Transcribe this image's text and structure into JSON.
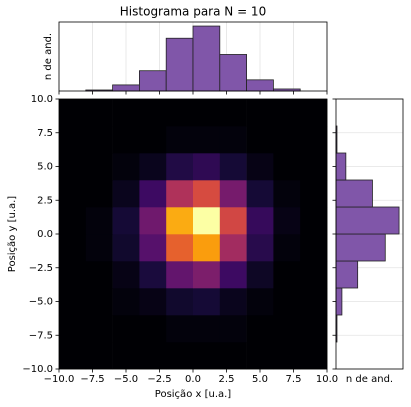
{
  "chart_data": [
    {
      "type": "heatmap",
      "xlabel": "Posição x [u.a.]",
      "ylabel": "Posição y [u.a.]",
      "xlim": [
        -10,
        10
      ],
      "ylim": [
        -10,
        10
      ],
      "xbins": [
        -10,
        -8,
        -6,
        -4,
        -2,
        0,
        2,
        4,
        6,
        8,
        10
      ],
      "ybins": [
        -10,
        -8,
        -6,
        -4,
        -2,
        0,
        2,
        4,
        6,
        8,
        10
      ],
      "values": [
        [
          0,
          0,
          0,
          0,
          0,
          0,
          0,
          0,
          0,
          0
        ],
        [
          0,
          0,
          0,
          0,
          1,
          1,
          1,
          0,
          0,
          0
        ],
        [
          0,
          0,
          1,
          2,
          5,
          6,
          3,
          1,
          0,
          0
        ],
        [
          0,
          0,
          2,
          7,
          18,
          22,
          12,
          4,
          0,
          0
        ],
        [
          0,
          1,
          5,
          16,
          41,
          50,
          28,
          9,
          1,
          0
        ],
        [
          0,
          1,
          6,
          20,
          52,
          64,
          36,
          11,
          2,
          0
        ],
        [
          0,
          0,
          3,
          12,
          30,
          37,
          21,
          6,
          1,
          0
        ],
        [
          0,
          0,
          1,
          3,
          8,
          10,
          6,
          2,
          0,
          0
        ],
        [
          0,
          0,
          0,
          0,
          1,
          1,
          1,
          0,
          0,
          0
        ],
        [
          0,
          0,
          0,
          0,
          0,
          0,
          0,
          0,
          0,
          0
        ]
      ],
      "colormap": "inferno",
      "clim": [
        0,
        64
      ],
      "xticks": [
        {
          "value": -10,
          "label": "−10.0"
        },
        {
          "value": -7.5,
          "label": "−7.5"
        },
        {
          "value": -5,
          "label": "−5.0"
        },
        {
          "value": -2.5,
          "label": "−2.5"
        },
        {
          "value": 0,
          "label": "0.0"
        },
        {
          "value": 2.5,
          "label": "2.5"
        },
        {
          "value": 5,
          "label": "5.0"
        },
        {
          "value": 7.5,
          "label": "7.5"
        },
        {
          "value": 10,
          "label": "10.0"
        }
      ],
      "yticks": [
        {
          "value": -10,
          "label": "−10.0"
        },
        {
          "value": -7.5,
          "label": "−7.5"
        },
        {
          "value": -5,
          "label": "−5.0"
        },
        {
          "value": -2.5,
          "label": "−2.5"
        },
        {
          "value": 0,
          "label": "0.0"
        },
        {
          "value": 2.5,
          "label": "2.5"
        },
        {
          "value": 5,
          "label": "5.0"
        },
        {
          "value": 7.5,
          "label": "7.5"
        },
        {
          "value": 10,
          "label": "10.0"
        }
      ]
    },
    {
      "type": "histogram",
      "orientation": "vertical",
      "title": "Histograma para N = 10",
      "ylabel": "n de and.",
      "bins": [
        -10,
        -8,
        -6,
        -4,
        -2,
        0,
        2,
        4,
        6,
        8,
        10
      ],
      "values": [
        0,
        1,
        6,
        20,
        52,
        64,
        36,
        11,
        2,
        0
      ],
      "color": "#8056a9",
      "xlim": [
        -10,
        10
      ],
      "ylim": [
        0,
        68
      ],
      "xticks": [
        -10,
        -7.5,
        -5,
        -2.5,
        0,
        2.5,
        5,
        7.5,
        10
      ],
      "grid": true
    },
    {
      "type": "histogram",
      "orientation": "horizontal",
      "xlabel": "n de and.",
      "bins": [
        -10,
        -8,
        -6,
        -4,
        -2,
        0,
        2,
        4,
        6,
        8,
        10
      ],
      "values": [
        0,
        1,
        6,
        22,
        50,
        64,
        37,
        10,
        1,
        0
      ],
      "color": "#8056a9",
      "ylim": [
        -10,
        10
      ],
      "xlim": [
        0,
        68
      ],
      "yticks": [
        -10,
        -7.5,
        -5,
        -2.5,
        0,
        2.5,
        5,
        7.5,
        10
      ],
      "grid": true
    }
  ]
}
